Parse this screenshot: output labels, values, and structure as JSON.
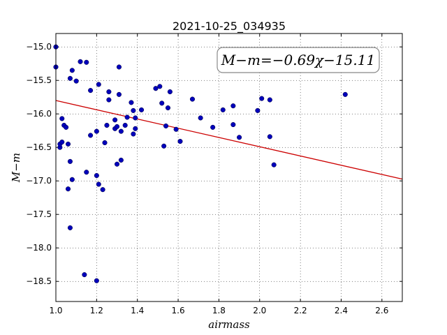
{
  "chart_data": {
    "type": "scatter",
    "title": "2021-10-25_034935",
    "xlabel": "airmass",
    "ylabel": "M−m",
    "xlim": [
      1.0,
      2.7
    ],
    "ylim": [
      -18.8,
      -14.8
    ],
    "x_ticks": [
      "1.0",
      "1.2",
      "1.4",
      "1.6",
      "1.8",
      "2.0",
      "2.2",
      "2.4",
      "2.6"
    ],
    "y_ticks": [
      "−15.0",
      "−15.5",
      "−16.0",
      "−16.5",
      "−17.0",
      "−17.5",
      "−18.0",
      "−18.5"
    ],
    "grid": true,
    "annotation": "M−m=−0.69χ−15.11",
    "fit": {
      "slope": -0.69,
      "intercept": -15.11,
      "color": "#cc0000"
    },
    "point_color": "#0000bb",
    "points": [
      [
        1.0,
        -15.0
      ],
      [
        1.0,
        -15.3
      ],
      [
        1.02,
        -16.5
      ],
      [
        1.02,
        -16.45
      ],
      [
        1.03,
        -16.42
      ],
      [
        1.03,
        -16.07
      ],
      [
        1.04,
        -16.17
      ],
      [
        1.05,
        -16.2
      ],
      [
        1.06,
        -16.45
      ],
      [
        1.06,
        -17.12
      ],
      [
        1.07,
        -15.47
      ],
      [
        1.07,
        -16.71
      ],
      [
        1.07,
        -17.7
      ],
      [
        1.08,
        -15.35
      ],
      [
        1.08,
        -16.98
      ],
      [
        1.1,
        -15.51
      ],
      [
        1.12,
        -15.22
      ],
      [
        1.14,
        -18.4
      ],
      [
        1.15,
        -15.23
      ],
      [
        1.15,
        -16.87
      ],
      [
        1.17,
        -15.65
      ],
      [
        1.17,
        -16.32
      ],
      [
        1.2,
        -16.26
      ],
      [
        1.2,
        -16.92
      ],
      [
        1.21,
        -15.56
      ],
      [
        1.21,
        -17.05
      ],
      [
        1.2,
        -18.49
      ],
      [
        1.23,
        -17.13
      ],
      [
        1.24,
        -16.43
      ],
      [
        1.25,
        -16.17
      ],
      [
        1.26,
        -15.67
      ],
      [
        1.26,
        -15.79
      ],
      [
        1.29,
        -16.22
      ],
      [
        1.29,
        -16.09
      ],
      [
        1.3,
        -16.19
      ],
      [
        1.3,
        -16.75
      ],
      [
        1.31,
        -15.71
      ],
      [
        1.31,
        -15.3
      ],
      [
        1.32,
        -16.26
      ],
      [
        1.32,
        -16.69
      ],
      [
        1.34,
        -16.17
      ],
      [
        1.35,
        -16.05
      ],
      [
        1.37,
        -15.83
      ],
      [
        1.38,
        -15.95
      ],
      [
        1.38,
        -16.3
      ],
      [
        1.39,
        -16.06
      ],
      [
        1.39,
        -16.22
      ],
      [
        1.42,
        -15.94
      ],
      [
        1.49,
        -15.62
      ],
      [
        1.51,
        -15.59
      ],
      [
        1.52,
        -15.84
      ],
      [
        1.53,
        -16.48
      ],
      [
        1.54,
        -16.18
      ],
      [
        1.55,
        -15.91
      ],
      [
        1.56,
        -15.67
      ],
      [
        1.59,
        -16.23
      ],
      [
        1.61,
        -16.41
      ],
      [
        1.67,
        -15.78
      ],
      [
        1.71,
        -16.06
      ],
      [
        1.77,
        -16.2
      ],
      [
        1.82,
        -15.94
      ],
      [
        1.87,
        -15.88
      ],
      [
        1.87,
        -16.16
      ],
      [
        1.9,
        -16.35
      ],
      [
        1.99,
        -15.95
      ],
      [
        2.01,
        -15.77
      ],
      [
        2.05,
        -15.79
      ],
      [
        2.05,
        -16.34
      ],
      [
        2.07,
        -16.76
      ],
      [
        2.42,
        -15.71
      ]
    ]
  }
}
